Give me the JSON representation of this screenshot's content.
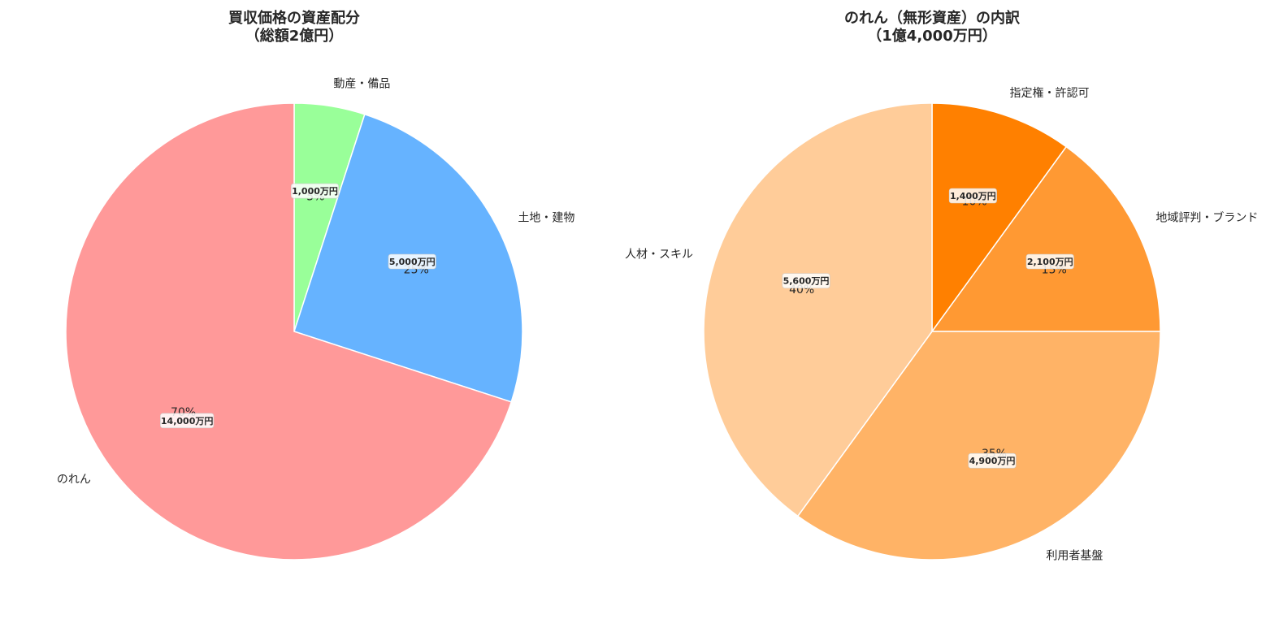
{
  "chart_data": [
    {
      "type": "pie",
      "title_line1": "買収価格の資産配分",
      "title_line2": "（総額2億円）",
      "categories": [
        "動産・備品",
        "土地・建物",
        "のれん"
      ],
      "values": [
        1000,
        5000,
        14000
      ],
      "percent_labels": [
        "5%",
        "25%",
        "70%"
      ],
      "amount_labels": [
        "1,000万円",
        "5,000万円",
        "14,000万円"
      ],
      "colors": [
        "#99ff99",
        "#66b3ff",
        "#ff9999"
      ],
      "unit": "万円",
      "start": "top",
      "direction": "clockwise"
    },
    {
      "type": "pie",
      "title_line1": "のれん（無形資産）の内訳",
      "title_line2": "（1億4,000万円）",
      "categories": [
        "指定権・許認可",
        "地域評判・ブランド",
        "利用者基盤",
        "人材・スキル"
      ],
      "values": [
        1400,
        2100,
        4900,
        5600
      ],
      "percent_labels": [
        "10%",
        "15%",
        "35%",
        "40%"
      ],
      "amount_labels": [
        "1,400万円",
        "2,100万円",
        "4,900万円",
        "5,600万円"
      ],
      "colors": [
        "#ff8000",
        "#ff9933",
        "#ffb366",
        "#ffcc99"
      ],
      "unit": "万円",
      "start": "top",
      "direction": "clockwise"
    }
  ]
}
